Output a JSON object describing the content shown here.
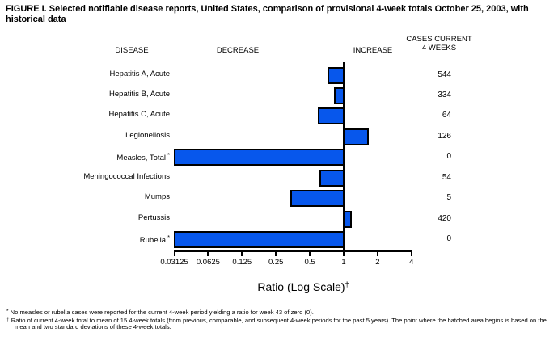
{
  "title": "FIGURE I. Selected notifiable disease reports, United States, comparison of provisional 4-week totals October 25, 2003, with historical data",
  "columns": {
    "disease": "DISEASE",
    "decrease": "DECREASE",
    "increase": "INCREASE",
    "cases_line1": "CASES CURRENT",
    "cases_line2": "4 WEEKS"
  },
  "chart_data": {
    "type": "bar",
    "orientation": "horizontal",
    "scale": "log2",
    "bar_color": "#0757EC",
    "axis": {
      "title": "Ratio (Log Scale)",
      "title_sup": "†",
      "ticks": [
        0.03125,
        0.0625,
        0.125,
        0.25,
        0.5,
        1,
        2,
        4
      ],
      "tick_labels": [
        "0.03125",
        "0.0625",
        "0.125",
        "0.25",
        "0.5",
        "1",
        "2",
        "4"
      ],
      "min": 0.03125,
      "max": 4,
      "baseline": 1
    },
    "rows": [
      {
        "disease": "Hepatitis A, Acute",
        "mark": "",
        "ratio": 0.73,
        "cases": "544"
      },
      {
        "disease": "Hepatitis B, Acute",
        "mark": "",
        "ratio": 0.83,
        "cases": "334"
      },
      {
        "disease": "Hepatitis C, Acute",
        "mark": "",
        "ratio": 0.6,
        "cases": "64"
      },
      {
        "disease": "Legionellosis",
        "mark": "",
        "ratio": 1.63,
        "cases": "126"
      },
      {
        "disease": "Measles, Total",
        "mark": "*",
        "ratio": 0,
        "cases": "0"
      },
      {
        "disease": "Meningococcal Infections",
        "mark": "",
        "ratio": 0.62,
        "cases": "54"
      },
      {
        "disease": "Mumps",
        "mark": "",
        "ratio": 0.34,
        "cases": "5"
      },
      {
        "disease": "Pertussis",
        "mark": "",
        "ratio": 1.16,
        "cases": "420"
      },
      {
        "disease": "Rubella",
        "mark": "*",
        "ratio": 0,
        "cases": "0"
      }
    ]
  },
  "footnotes": [
    {
      "mark": "*",
      "text": "No measles or rubella cases were reported for the current 4-week period yielding a ratio for week 43 of zero (0)."
    },
    {
      "mark": "†",
      "text": "Ratio of current 4-week total to mean of 15 4-week totals (from previous, comparable, and subsequent 4-week periods for the past 5 years). The point where the hatched area begins is based on the mean and two standard deviations of these 4-week totals."
    }
  ]
}
